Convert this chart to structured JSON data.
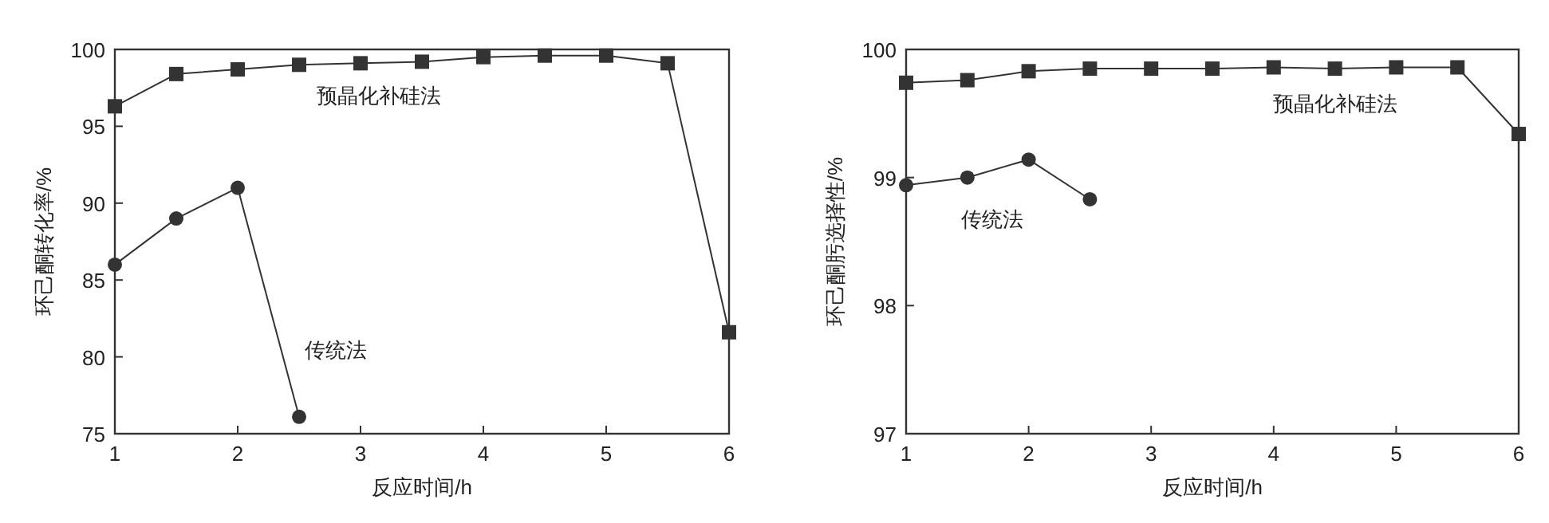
{
  "chart_data": [
    {
      "type": "line",
      "xlabel": "反应时间/h",
      "ylabel": "环己酮转化率/%",
      "xlim": [
        1,
        6
      ],
      "ylim": [
        75,
        100
      ],
      "xticks": [
        1,
        2,
        3,
        4,
        5,
        6
      ],
      "yticks": [
        75,
        80,
        85,
        90,
        95,
        100
      ],
      "grid": false,
      "series": [
        {
          "name": "预晶化补硅法",
          "color": "#333333",
          "marker": "square",
          "x": [
            1,
            1.5,
            2,
            2.5,
            3,
            3.5,
            4,
            4.5,
            5,
            5.5,
            6
          ],
          "values": [
            96.3,
            98.4,
            98.7,
            99.0,
            99.1,
            99.2,
            99.5,
            99.6,
            99.6,
            99.1,
            81.6
          ]
        },
        {
          "name": "传统法",
          "color": "#333333",
          "marker": "circle",
          "x": [
            1,
            1.5,
            2,
            2.5
          ],
          "values": [
            86.0,
            89.0,
            91.0,
            76.1
          ]
        }
      ]
    },
    {
      "type": "line",
      "xlabel": "反应时间/h",
      "ylabel": "环己酮肟选择性/%",
      "xlim": [
        1,
        6
      ],
      "ylim": [
        97,
        100
      ],
      "xticks": [
        1,
        2,
        3,
        4,
        5,
        6
      ],
      "yticks": [
        97,
        98,
        99,
        100
      ],
      "grid": false,
      "series": [
        {
          "name": "预晶化补硅法",
          "color": "#333333",
          "marker": "square",
          "x": [
            1,
            1.5,
            2,
            2.5,
            3,
            3.5,
            4,
            4.5,
            5,
            5.5,
            6
          ],
          "values": [
            99.74,
            99.76,
            99.83,
            99.85,
            99.85,
            99.85,
            99.86,
            99.85,
            99.86,
            99.86,
            99.34
          ]
        },
        {
          "name": "传统法",
          "color": "#333333",
          "marker": "circle",
          "x": [
            1,
            1.5,
            2,
            2.5
          ],
          "values": [
            98.94,
            99.0,
            99.14,
            98.83
          ]
        }
      ]
    }
  ]
}
